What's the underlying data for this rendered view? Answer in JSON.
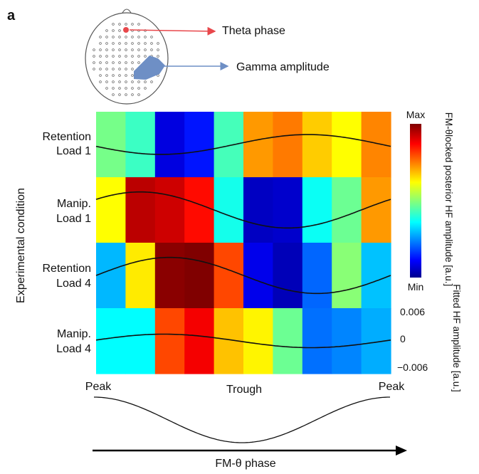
{
  "panel_label": "a",
  "head_diagram": {
    "theta_label": "Theta phase",
    "gamma_label": "Gamma amplitude",
    "theta_color": "#e8474b",
    "gamma_color": "#6e8fc5"
  },
  "chart_data": {
    "type": "heatmap",
    "title": "",
    "xlabel": "FM-θ phase",
    "ylabel": "Experimental condition",
    "x_tick_labels": [
      "Peak",
      "Trough",
      "Peak"
    ],
    "rows": [
      {
        "label_line1": "Retention",
        "label_line2": "Load 1"
      },
      {
        "label_line1": "Manip.",
        "label_line2": "Load 1"
      },
      {
        "label_line1": "Retention",
        "label_line2": "Load 4"
      },
      {
        "label_line1": "Manip.",
        "label_line2": "Load 4"
      }
    ],
    "n_bins": 10,
    "values": [
      [
        0.48,
        0.42,
        0.08,
        0.13,
        0.43,
        0.72,
        0.75,
        0.67,
        0.62,
        0.74
      ],
      [
        0.62,
        0.94,
        0.92,
        0.86,
        0.38,
        0.05,
        0.06,
        0.37,
        0.47,
        0.72
      ],
      [
        0.29,
        0.64,
        0.99,
        1.0,
        0.8,
        0.09,
        0.04,
        0.21,
        0.5,
        0.3
      ],
      [
        0.36,
        0.36,
        0.8,
        0.88,
        0.68,
        0.63,
        0.47,
        0.22,
        0.24,
        0.28
      ]
    ],
    "value_range": [
      "Min",
      "Max"
    ],
    "colorbar_label": "FM-θlocked posterior HF amplitude [a.u.]",
    "colorbar_min_label": "Min",
    "colorbar_max_label": "Max",
    "fit_axis_label": "Fitted HF amplitude [a.u.]",
    "fit_ticks": [
      "0.006",
      "0",
      "−0.006"
    ],
    "fitted_curves": [
      {
        "amplitude": 0.0022,
        "peak_bin": 7.2
      },
      {
        "amplitude": 0.004,
        "peak_bin": 1.5
      },
      {
        "amplitude": 0.004,
        "peak_bin": 2.5
      },
      {
        "amplitude": 0.0015,
        "peak_bin": 2.3
      }
    ],
    "colormap": [
      "#00008f",
      "#0000ff",
      "#00ffff",
      "#ffff00",
      "#ff0000",
      "#800000"
    ]
  }
}
